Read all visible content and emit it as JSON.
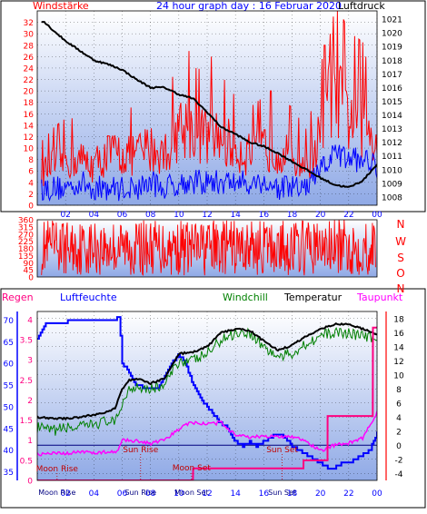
{
  "header": {
    "left_label": "Windstärke",
    "title": "24 hour graph day : 16 Februar 2020",
    "right_label": "Luftdruck"
  },
  "colors": {
    "plot_bg_top": "#ffffff",
    "plot_bg_bottom": "#8fa9e6",
    "wind_gust": "#ff0000",
    "wind_avg": "#0000ff",
    "pressure": "#000000",
    "direction": "#ff0000",
    "humidity": "#0000ff",
    "windchill": "#008000",
    "temperature": "#000000",
    "dewpoint": "#ff00ff",
    "rain": "#ff0080",
    "sun_marks": "#c00000",
    "zero_line": "#000080",
    "axis_red": "#ff0000",
    "axis_blue": "#0000ff"
  },
  "chart_data": [
    {
      "type": "line",
      "x_ticks": [
        "02",
        "04",
        "06",
        "08",
        "10",
        "12",
        "14",
        "16",
        "18",
        "20",
        "22",
        "00"
      ],
      "left_axis": {
        "ticks": [
          "0",
          "2",
          "4",
          "6",
          "8",
          "10",
          "12",
          "14",
          "16",
          "18",
          "20",
          "22",
          "24",
          "26",
          "28",
          "30",
          "32"
        ],
        "range": [
          0,
          34
        ]
      },
      "right_axis": {
        "ticks": [
          "1008",
          "1009",
          "1010",
          "1011",
          "1012",
          "1013",
          "1014",
          "1015",
          "1016",
          "1017",
          "1018",
          "1019",
          "1020",
          "1021"
        ],
        "range": [
          1007.4,
          1021.6
        ]
      },
      "series": [
        {
          "hours": [
            0.5,
            1,
            2,
            3,
            4,
            5,
            6,
            7,
            8,
            9,
            10,
            11,
            12,
            13,
            14,
            15,
            16,
            17,
            18,
            19,
            20,
            20.5,
            21,
            22,
            23,
            24
          ],
          "gust_base": [
            6,
            7,
            8,
            8,
            7,
            9,
            9,
            9,
            10,
            9,
            14,
            13,
            12,
            12,
            10,
            9,
            10,
            10,
            9,
            7,
            12,
            18,
            19,
            16,
            15,
            12
          ],
          "gust_peaks": [
            [
              10.7,
              27
            ],
            [
              11.2,
              24
            ],
            [
              12.3,
              26
            ],
            [
              16.5,
              20
            ],
            [
              20.3,
              28
            ],
            [
              20.7,
              30
            ],
            [
              20.9,
              33
            ],
            [
              21.5,
              24
            ],
            [
              23.2,
              26
            ]
          ]
        },
        {
          "hours": [
            0.5,
            1,
            2,
            3,
            4,
            5,
            6,
            7,
            8,
            9,
            10,
            11,
            12,
            13,
            14,
            15,
            16,
            17,
            18,
            19,
            20,
            21,
            22,
            23,
            24
          ],
          "avg_base": [
            3,
            3,
            3,
            4,
            3,
            3,
            3,
            3,
            4,
            3,
            4,
            4,
            4,
            4,
            4,
            4,
            4,
            3,
            3,
            3,
            6,
            9,
            8,
            8,
            7
          ]
        },
        {
          "hours": [
            0.5,
            1,
            2,
            3,
            4,
            5,
            6,
            7,
            8,
            9,
            10,
            11,
            12,
            13,
            14,
            15,
            16,
            17,
            18,
            19,
            20,
            21,
            22,
            23,
            24
          ],
          "values": [
            1020.8,
            1020.3,
            1019.4,
            1018.7,
            1018.0,
            1017.7,
            1017.3,
            1016.6,
            1016.0,
            1016.0,
            1015.5,
            1015.2,
            1014.2,
            1013.1,
            1012.6,
            1012.0,
            1011.7,
            1011.2,
            1010.6,
            1010.0,
            1009.4,
            1008.9,
            1008.7,
            1009.2,
            1010.4
          ]
        }
      ]
    },
    {
      "type": "line",
      "x_ticks": [],
      "left_axis": {
        "ticks": [
          "0",
          "45",
          "90",
          "135",
          "180",
          "225",
          "270",
          "315",
          "360"
        ],
        "range": [
          0,
          360
        ]
      },
      "right_axis": {
        "ticks": [
          "N",
          "W",
          "S",
          "O",
          "N"
        ]
      },
      "series": [
        {
          "center": 185,
          "spread": 175
        }
      ]
    },
    {
      "type": "line",
      "x_ticks": [
        "02",
        "04",
        "06",
        "08",
        "10",
        "12",
        "14",
        "16",
        "18",
        "20",
        "22",
        "00"
      ],
      "legend": [
        "Regen",
        "Luftfeuchte",
        "Windchill",
        "Temperatur",
        "Taupunkt"
      ],
      "left_axis_rain": {
        "ticks": [
          "0",
          "0.5",
          "1",
          "1.5",
          "2",
          "2.5",
          "3",
          "3.5",
          "4"
        ],
        "range": [
          0,
          4.2
        ]
      },
      "left_axis_humidity": {
        "ticks": [
          "35",
          "40",
          "45",
          "50",
          "55",
          "60",
          "65",
          "70"
        ],
        "range": [
          33,
          72
        ]
      },
      "right_axis": {
        "ticks": [
          "-4",
          "-2",
          "0",
          "2",
          "4",
          "6",
          "8",
          "10",
          "12",
          "14",
          "16",
          "18"
        ],
        "range": [
          -5,
          19
        ]
      },
      "series": [
        {
          "hours": [
            0,
            0.3,
            0.5,
            1,
            2,
            2.2,
            3,
            4,
            5,
            5.5,
            5.8,
            6,
            6.5,
            7,
            8,
            8.5,
            9,
            9.5,
            10,
            10.3,
            10.7,
            11,
            11.5,
            12,
            13,
            13.5,
            14,
            14.5,
            15,
            15.5,
            16,
            16.5,
            17,
            17.5,
            18,
            18.5,
            19,
            19.5,
            20,
            20.5,
            21,
            21.5,
            22,
            22.5,
            23,
            23.5,
            24
          ],
          "values": [
            66,
            67,
            69,
            69,
            69,
            70,
            70,
            70,
            70,
            70,
            71,
            60,
            58,
            55,
            54,
            54,
            57,
            60,
            62,
            61,
            58,
            55,
            52,
            50,
            46,
            45,
            42,
            41,
            42,
            41,
            42,
            43,
            44,
            43,
            41,
            40,
            39,
            38,
            37,
            36,
            36,
            37,
            37,
            38,
            39,
            40,
            44
          ]
        },
        {
          "hours": [
            0,
            1,
            2,
            3,
            4,
            5,
            5.5,
            6,
            6.5,
            7,
            8,
            9,
            10,
            11,
            12,
            12.5,
            13,
            14,
            15,
            16,
            17,
            18,
            19,
            20,
            21,
            22,
            23,
            24
          ],
          "values": [
            2.5,
            2,
            2.5,
            2.5,
            3,
            3.5,
            3,
            6,
            8,
            8.5,
            8,
            8.5,
            12,
            12,
            13,
            14,
            15,
            16,
            16,
            14,
            12.5,
            13,
            14.5,
            15.5,
            16,
            16,
            15.5,
            15
          ]
        },
        {
          "hours": [
            0,
            1,
            2,
            3,
            4,
            5,
            5.5,
            6,
            6.5,
            7,
            8,
            9,
            10,
            11,
            12,
            12.5,
            13,
            14,
            15,
            16,
            17,
            18,
            19,
            20,
            21,
            22,
            23,
            24
          ],
          "values": [
            4,
            3.8,
            3.8,
            4,
            4.3,
            4.8,
            5.2,
            8,
            9.2,
            9.5,
            8.8,
            9.5,
            13,
            13.2,
            14,
            15,
            16,
            16.5,
            16.3,
            14.8,
            13.5,
            14.2,
            15.5,
            16.5,
            17.2,
            17.2,
            16.5,
            15.8
          ]
        },
        {
          "hours": [
            0,
            1,
            2,
            3,
            4,
            5,
            5.7,
            6,
            7,
            8,
            9,
            10,
            10.5,
            11,
            12,
            13,
            14,
            15,
            16,
            17,
            18,
            19,
            20,
            21,
            22,
            23,
            24
          ],
          "values": [
            -1.3,
            -1.2,
            -1.2,
            -1,
            -1,
            -1,
            -1,
            0.8,
            0.6,
            0.2,
            0.7,
            2.3,
            3,
            3.2,
            3,
            3.2,
            1.5,
            1.2,
            1.2,
            1.2,
            1.3,
            0.5,
            -0.8,
            0,
            0.3,
            1,
            4.6
          ]
        },
        {
          "hours": [
            0,
            11,
            11.01,
            18.8,
            18.81,
            20.5,
            20.51,
            23.7,
            23.71,
            24
          ],
          "values": [
            0,
            0,
            0.3,
            0.3,
            0.5,
            0.5,
            1.6,
            1.6,
            3.8,
            3.8
          ]
        }
      ],
      "events": [
        {
          "label": "Moon Rise",
          "hour": 1.4
        },
        {
          "label": "Sun Rise",
          "hour": 7.3
        },
        {
          "label": "Moon Set",
          "hour": 10.9
        },
        {
          "label": "Sun Set",
          "hour": 17.3
        }
      ]
    }
  ]
}
